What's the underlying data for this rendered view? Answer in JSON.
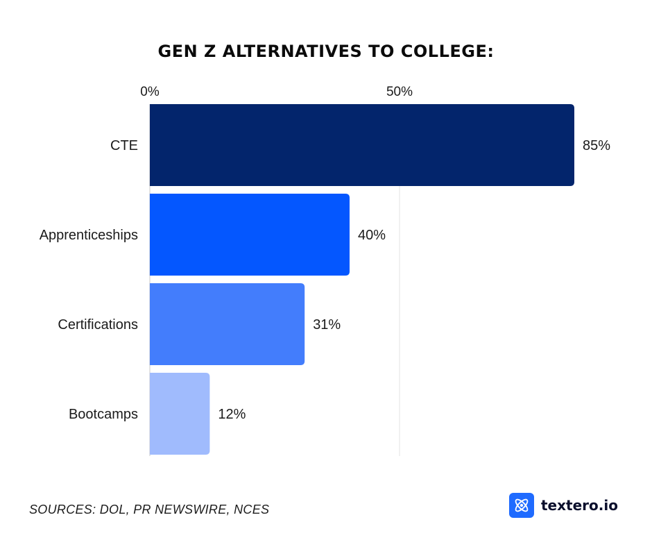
{
  "title": "GEN Z ALTERNATIVES TO COLLEGE:",
  "source": "SOURCES: DOL, PR NEWSWIRE, NCES",
  "brand": {
    "name": "textero.io",
    "icon": "atom-logo-icon",
    "color": "#1f6bff"
  },
  "chart_data": {
    "type": "bar",
    "orientation": "horizontal",
    "categories": [
      "CTE",
      "Apprenticeships",
      "Certifications",
      "Bootcamps"
    ],
    "values": [
      85,
      40,
      31,
      12
    ],
    "value_labels": [
      "85%",
      "40%",
      "31%",
      "12%"
    ],
    "colors": [
      "#03256c",
      "#0457ff",
      "#437dfc",
      "#a0bbfd"
    ],
    "xticks": [
      0,
      50
    ],
    "xtick_labels": [
      "0%",
      "50%"
    ],
    "xlim": [
      0,
      100
    ],
    "title": "GEN Z ALTERNATIVES TO COLLEGE:",
    "xlabel": "",
    "ylabel": "",
    "grid": true,
    "legend": "none"
  }
}
